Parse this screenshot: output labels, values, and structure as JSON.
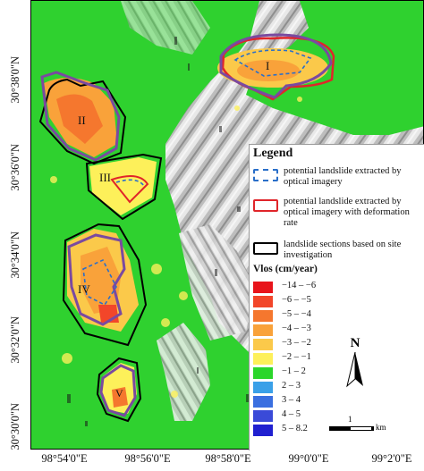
{
  "map": {
    "latitude_labels": [
      "30°38'0\"N",
      "30°36'0\"N",
      "30°34'0\"N",
      "30°32'0\"N",
      "30°30'0\"N"
    ],
    "longitude_labels": [
      "98°54'0\"E",
      "98°56'0\"E",
      "98°58'0\"E",
      "99°0'0\"E",
      "99°2'0\"E"
    ],
    "landslide_labels": [
      "I",
      "II",
      "III",
      "IV",
      "V"
    ]
  },
  "legend": {
    "title": "Legend",
    "items": [
      {
        "label": "potential landslide extracted by optical imagery",
        "style": "dashed-blue",
        "color": "#2a6fc9"
      },
      {
        "label": "potential landslide extracted by optical imagery with deformation rate",
        "style": "solid-red",
        "color": "#e0252a"
      },
      {
        "label": "landslide sections based on site investigation",
        "style": "solid-black",
        "color": "#000000"
      }
    ],
    "vlos_title": "Vlos (cm/year)",
    "vlos_classes": [
      {
        "label": "−14 – −6",
        "color": "#e8141b"
      },
      {
        "label": "−6 – −5",
        "color": "#f2462a"
      },
      {
        "label": "−5 – −4",
        "color": "#f5772e"
      },
      {
        "label": "−4 – −3",
        "color": "#f9a23a"
      },
      {
        "label": "−3 – −2",
        "color": "#fbc94a"
      },
      {
        "label": "−2 – −1",
        "color": "#fdf05a"
      },
      {
        "label": "−1 – 2",
        "color": "#2bd62b"
      },
      {
        "label": "2 – 3",
        "color": "#3aa0e8"
      },
      {
        "label": "3 – 4",
        "color": "#3a6fe0"
      },
      {
        "label": "4 – 5",
        "color": "#3a4ad8"
      },
      {
        "label": "5 – 8.2",
        "color": "#2020d0"
      }
    ]
  },
  "north_arrow": {
    "letter": "N"
  },
  "scale_bar": {
    "value": "1",
    "unit": "km"
  }
}
